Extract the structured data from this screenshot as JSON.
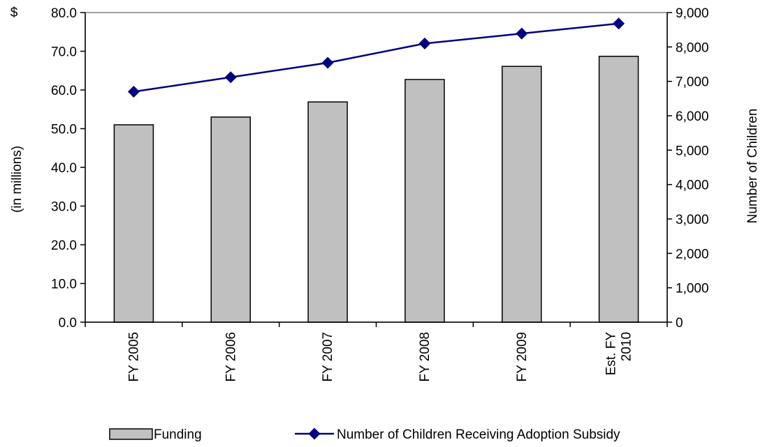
{
  "chart_data": {
    "type": "bar",
    "categories": [
      [
        "FY 2005"
      ],
      [
        "FY 2006"
      ],
      [
        "FY 2007"
      ],
      [
        "FY 2008"
      ],
      [
        "FY 2009"
      ],
      [
        "Est. FY",
        "2010"
      ]
    ],
    "series": [
      {
        "name": "Funding",
        "type": "bar",
        "axis": "left",
        "values": [
          51.0,
          53.0,
          56.9,
          62.7,
          66.1,
          68.7
        ],
        "color": "#c0c0c0"
      },
      {
        "name": "Number of Children Receiving Adoption Subsidy",
        "type": "line",
        "axis": "right",
        "values": [
          6700,
          7120,
          7540,
          8100,
          8390,
          8680
        ],
        "color": "#000080"
      }
    ],
    "y_left": {
      "unit_label": "$",
      "label": "(in millions)",
      "ylim": [
        0,
        80
      ],
      "ticks": [
        "0.0",
        "10.0",
        "20.0",
        "30.0",
        "40.0",
        "50.0",
        "60.0",
        "70.0",
        "80.0"
      ]
    },
    "y_right": {
      "label": "Number of Children",
      "ylim": [
        0,
        9000
      ],
      "ticks": [
        "0",
        "1,000",
        "2,000",
        "3,000",
        "4,000",
        "5,000",
        "6,000",
        "7,000",
        "8,000",
        "9,000"
      ]
    },
    "grid": false,
    "legend_position": "bottom"
  }
}
